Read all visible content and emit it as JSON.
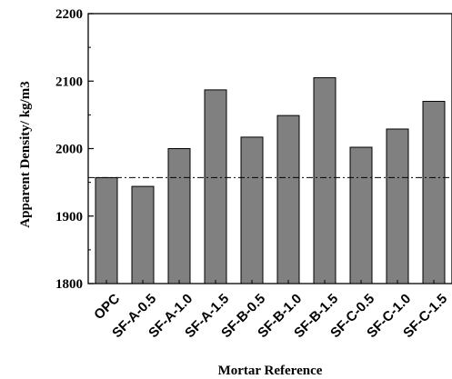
{
  "chart_data": {
    "type": "bar",
    "categories": [
      "OPC",
      "SF-A-0.5",
      "SF-A-1.0",
      "SF-A-1.5",
      "SF-B-0.5",
      "SF-B-1.0",
      "SF-B-1.5",
      "SF-C-0.5",
      "SF-C-1.0",
      "SF-C-1.5"
    ],
    "values": [
      1957,
      1944,
      2000,
      2087,
      2017,
      2049,
      2105,
      2002,
      2029,
      2070
    ],
    "xlabel": "Mortar Reference",
    "ylabel": "Apparent Density/ kg/m3",
    "ylim": [
      1800,
      2200
    ],
    "yticks": [
      "1800",
      "1900",
      "2000",
      "2100",
      "2200"
    ],
    "reference_line": {
      "value": 1957,
      "style": "dash-dot"
    },
    "grid": false,
    "bar_color": "#808080"
  }
}
